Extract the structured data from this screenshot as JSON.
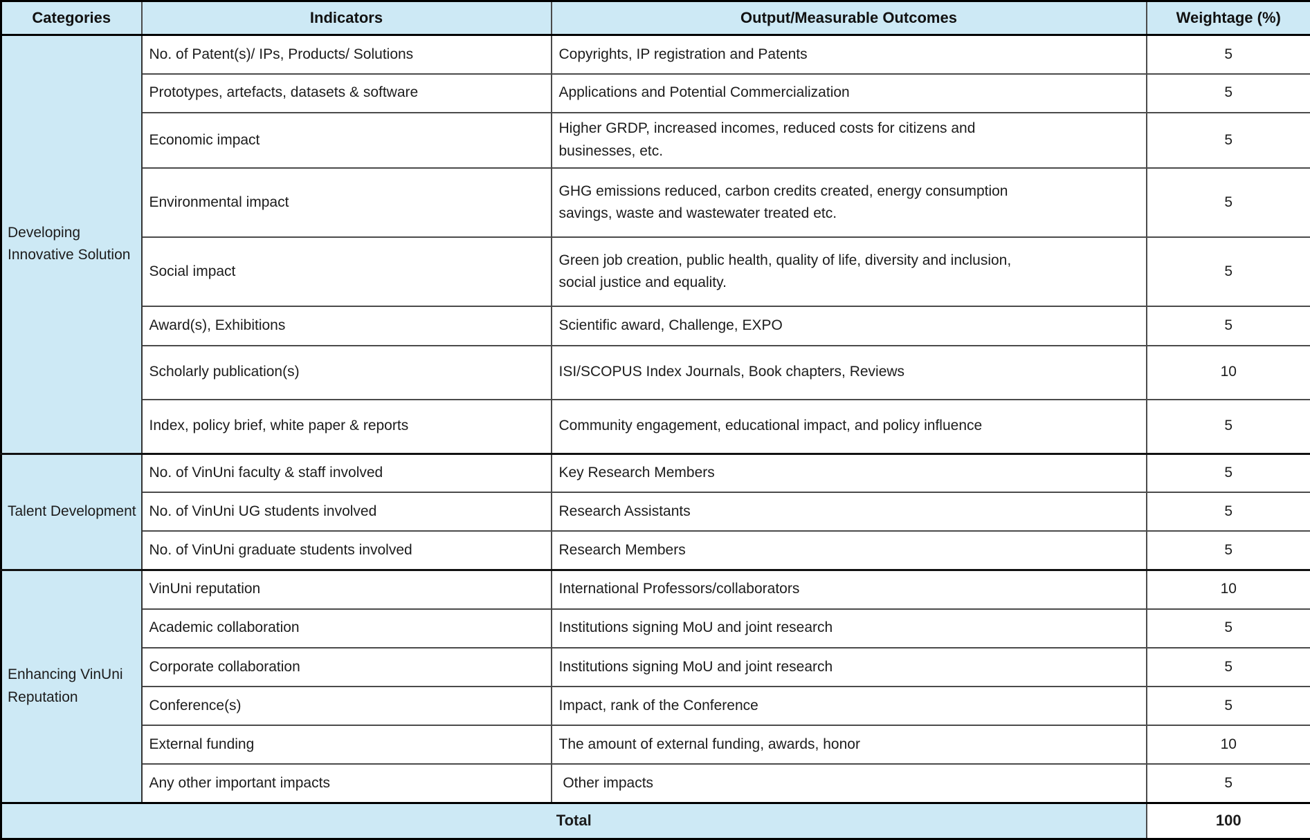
{
  "table": {
    "headers": [
      "Categories",
      "Indicators",
      "Output/Measurable Outcomes",
      "Weightage (%)"
    ],
    "sections": [
      {
        "category": "Developing Innovative Solution",
        "rows": [
          {
            "indicator": "No. of Patent(s)/ IPs, Products/ Solutions",
            "outcome": "Copyrights, IP registration and Patents",
            "weightage": "5"
          },
          {
            "indicator": "Prototypes, artefacts, datasets & software",
            "outcome": "Applications and Potential Commercialization",
            "weightage": "5"
          },
          {
            "indicator": "Economic impact",
            "outcome": "Higher GRDP, increased incomes, reduced costs for citizens and businesses, etc.",
            "weightage": "5"
          },
          {
            "indicator": "Environmental impact",
            "outcome": "GHG emissions reduced, carbon credits created, energy consumption savings, waste and wastewater treated etc.",
            "weightage": "5"
          },
          {
            "indicator": "Social impact",
            "outcome": "Green job creation, public health, quality of life, diversity and inclusion, social justice and equality.",
            "weightage": "5"
          },
          {
            "indicator": "Award(s), Exhibitions",
            "outcome": "Scientific award, Challenge, EXPO",
            "weightage": "5"
          },
          {
            "indicator": "Scholarly publication(s)",
            "outcome": "ISI/SCOPUS Index Journals, Book chapters, Reviews",
            "weightage": "10"
          },
          {
            "indicator": "Index, policy brief, white paper & reports",
            "outcome": "Community engagement, educational impact, and policy influence",
            "weightage": "5"
          }
        ]
      },
      {
        "category": "Talent Development",
        "rows": [
          {
            "indicator": "No. of VinUni faculty & staff involved",
            "outcome": "Key Research Members",
            "weightage": "5"
          },
          {
            "indicator": "No. of VinUni UG students involved",
            "outcome": "Research Assistants",
            "weightage": "5"
          },
          {
            "indicator": "No. of VinUni graduate students involved",
            "outcome": "Research Members",
            "weightage": "5"
          }
        ]
      },
      {
        "category": "Enhancing VinUni Reputation",
        "rows": [
          {
            "indicator": "VinUni reputation",
            "outcome": "International Professors/collaborators",
            "weightage": "10"
          },
          {
            "indicator": "Academic collaboration",
            "outcome": "Institutions signing MoU and joint research",
            "weightage": "5"
          },
          {
            "indicator": "Corporate collaboration",
            "outcome": "Institutions signing MoU and joint research",
            "weightage": "5"
          },
          {
            "indicator": "Conference(s)",
            "outcome": "Impact, rank of the Conference",
            "weightage": "5"
          },
          {
            "indicator": "External funding",
            "outcome": "The amount of external funding, awards, honor",
            "weightage": "10"
          },
          {
            "indicator": "Any other important impacts",
            "outcome": " Other impacts",
            "weightage": "5"
          }
        ]
      }
    ],
    "total": {
      "label": "Total",
      "value": "100"
    },
    "colors": {
      "header_bg": "#cde9f5",
      "category_bg": "#cde9f5",
      "total_bg": "#cde9f5",
      "row_bg": "#ffffff",
      "border_outer": "#000000",
      "border_inner": "#4a4a4a"
    }
  }
}
